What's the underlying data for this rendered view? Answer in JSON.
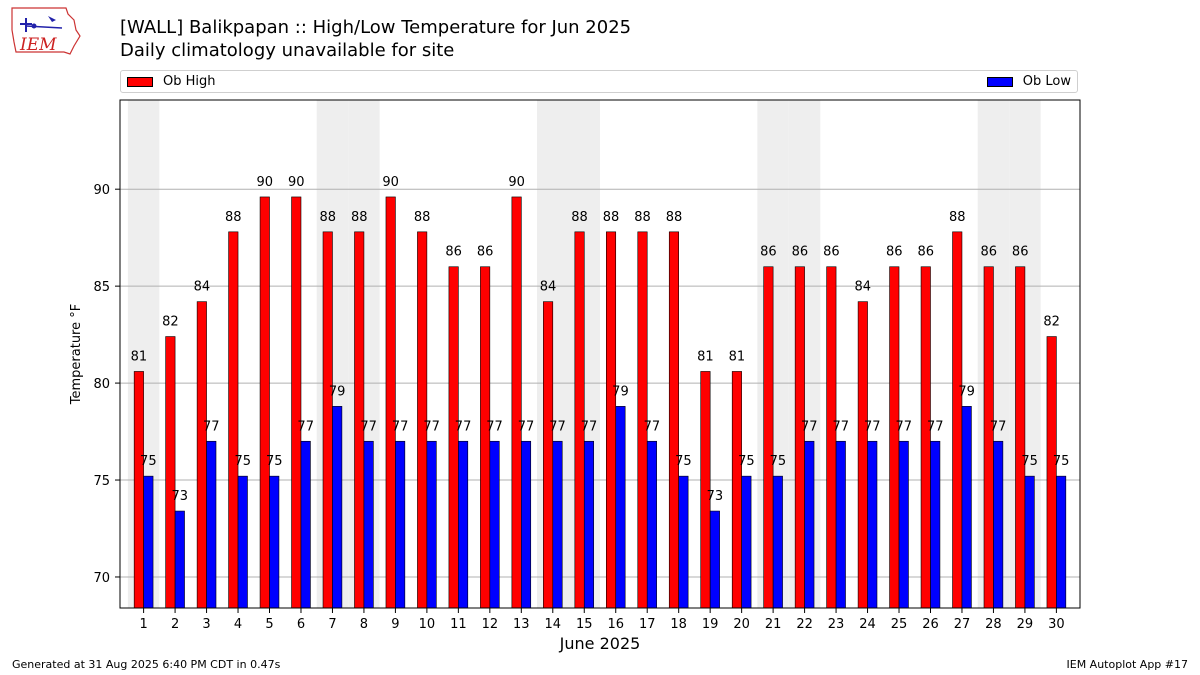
{
  "logo": {
    "text": "IEM"
  },
  "header": {
    "title": "[WALL] Balikpapan :: High/Low Temperature for Jun 2025",
    "subtitle": "Daily climatology unavailable for site"
  },
  "legend": {
    "high_label": "Ob High",
    "low_label": "Ob Low"
  },
  "colors": {
    "high": "#ff0000",
    "low": "#0000ff",
    "weekend_band": "#eeeeee"
  },
  "chart_data": {
    "type": "bar",
    "categories": [
      "1",
      "2",
      "3",
      "4",
      "5",
      "6",
      "7",
      "8",
      "9",
      "10",
      "11",
      "12",
      "13",
      "14",
      "15",
      "16",
      "17",
      "18",
      "19",
      "20",
      "21",
      "22",
      "23",
      "24",
      "25",
      "26",
      "27",
      "28",
      "29",
      "30"
    ],
    "series": [
      {
        "name": "Ob High",
        "values": [
          80.6,
          82.4,
          84.2,
          87.8,
          89.6,
          89.6,
          87.8,
          87.8,
          89.6,
          87.8,
          86.0,
          86.0,
          89.6,
          84.2,
          87.8,
          87.8,
          87.8,
          87.8,
          80.6,
          80.6,
          86.0,
          86.0,
          86.0,
          84.2,
          86.0,
          86.0,
          87.8,
          86.0,
          86.0,
          82.4
        ],
        "labels": [
          "81",
          "82",
          "84",
          "88",
          "90",
          "90",
          "88",
          "88",
          "90",
          "88",
          "86",
          "86",
          "90",
          "84",
          "88",
          "88",
          "88",
          "88",
          "81",
          "81",
          "86",
          "86",
          "86",
          "84",
          "86",
          "86",
          "88",
          "86",
          "86",
          "82"
        ]
      },
      {
        "name": "Ob Low",
        "values": [
          75.2,
          73.4,
          77.0,
          75.2,
          75.2,
          77.0,
          78.8,
          77.0,
          77.0,
          77.0,
          77.0,
          77.0,
          77.0,
          77.0,
          77.0,
          78.8,
          77.0,
          75.2,
          73.4,
          75.2,
          75.2,
          77.0,
          77.0,
          77.0,
          77.0,
          77.0,
          78.8,
          77.0,
          75.2,
          75.2
        ],
        "labels": [
          "75",
          "73",
          "77",
          "75",
          "75",
          "77",
          "79",
          "77",
          "77",
          "77",
          "77",
          "77",
          "77",
          "77",
          "77",
          "79",
          "77",
          "75",
          "73",
          "75",
          "75",
          "77",
          "77",
          "77",
          "77",
          "77",
          "79",
          "77",
          "75",
          "75"
        ]
      }
    ],
    "shaded_days": [
      1,
      7,
      8,
      14,
      15,
      21,
      22,
      28,
      29
    ],
    "xlabel": "June 2025",
    "ylabel": "Temperature °F",
    "ylim": [
      68.4,
      94.6
    ],
    "yticks": [
      70,
      75,
      80,
      85,
      90
    ],
    "grid": true,
    "legend_position": "top"
  },
  "footer": {
    "left": "Generated at 31 Aug 2025 6:40 PM CDT in 0.47s",
    "right": "IEM Autoplot App #17"
  }
}
